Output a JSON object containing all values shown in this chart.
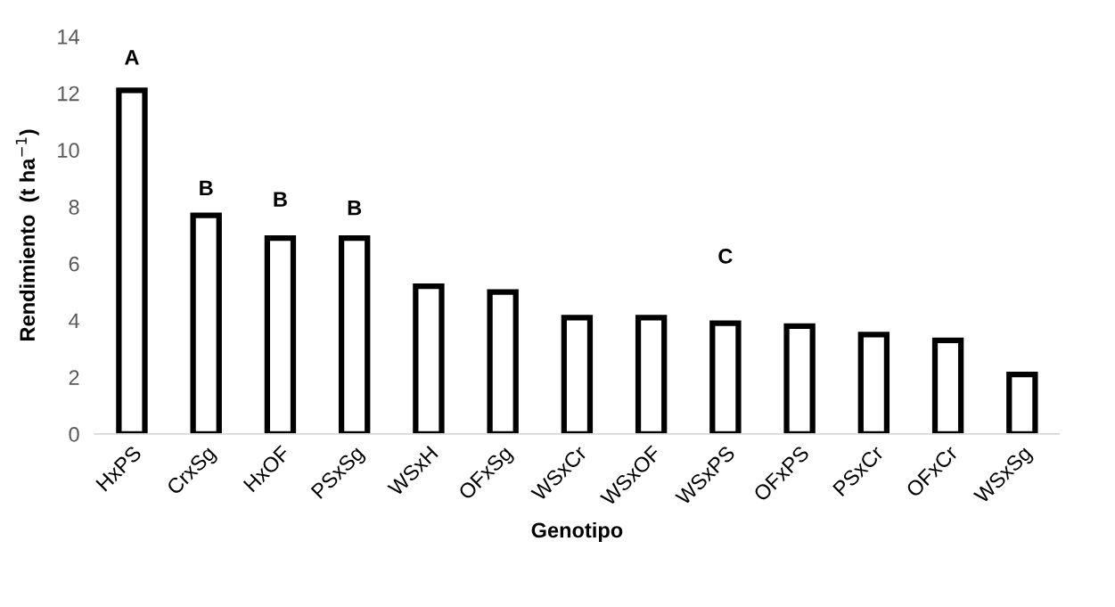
{
  "chart_data": {
    "type": "bar",
    "xlabel": "Genotipo",
    "ylabel": "Rendimiento  (t ha$^{−1}$)",
    "categories": [
      "HxPS",
      "CrxSg",
      "HxOF",
      "PSxSg",
      "WSxH",
      "OFxSg",
      "WSxCr",
      "WSxOF",
      "WSxPS",
      "OFxPS",
      "PSxCr",
      "OFxCr",
      "WSxSg"
    ],
    "values": [
      12.1,
      7.7,
      6.9,
      6.9,
      5.2,
      5.0,
      4.1,
      4.1,
      3.9,
      3.8,
      3.5,
      3.3,
      2.1
    ],
    "color": "#ffffff",
    "ylim": [
      0,
      14
    ],
    "yticks": [
      0,
      2,
      4,
      6,
      8,
      10,
      12,
      14
    ],
    "grid": false,
    "annotations": [
      "A",
      "B",
      "B",
      "B",
      "C"
    ]
  }
}
